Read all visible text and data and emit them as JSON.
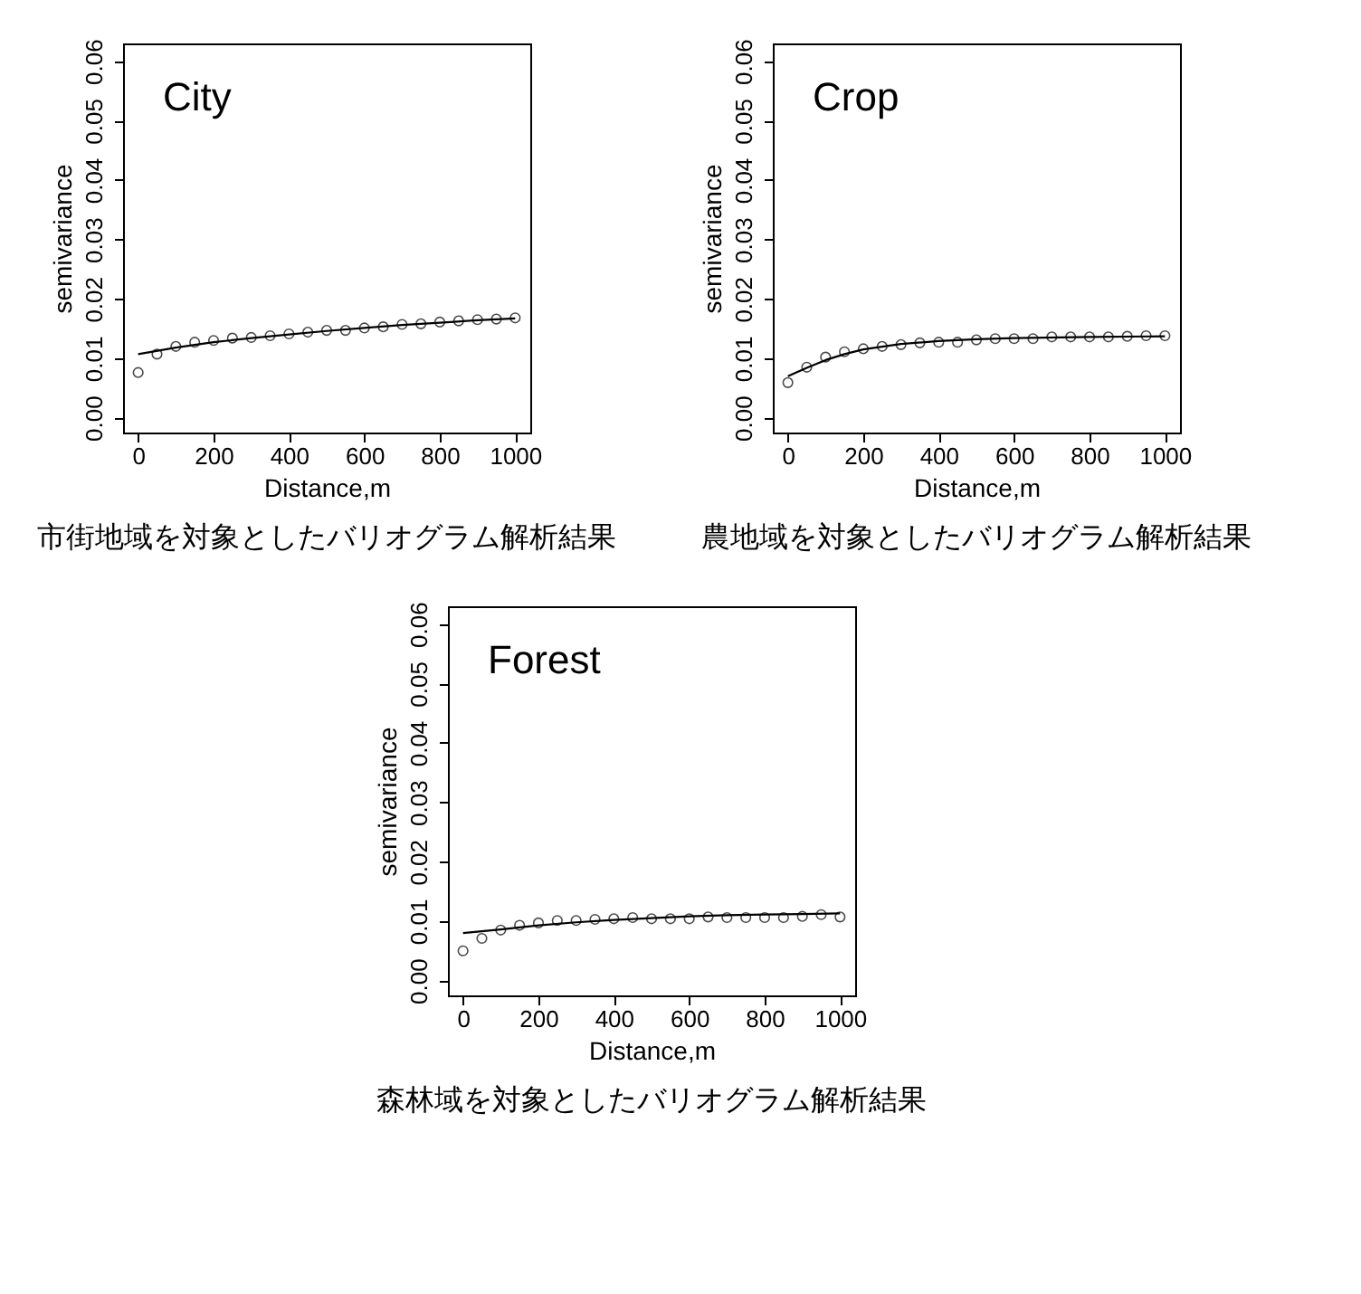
{
  "chart_data": [
    {
      "type": "scatter",
      "title": "City",
      "xlabel": "Distance,m",
      "ylabel": "semivariance",
      "annotations": [
        "市街地域を対象としたバリオグラム解析結果"
      ],
      "xlim": [
        -40,
        1040
      ],
      "ylim": [
        -0.0025,
        0.063
      ],
      "xticks": [
        0,
        200,
        400,
        600,
        800,
        1000
      ],
      "yticks": [
        {
          "value": 0,
          "label": "0.00"
        },
        {
          "value": 0.01,
          "label": "0.01"
        },
        {
          "value": 0.02,
          "label": "0.02"
        },
        {
          "value": 0.03,
          "label": "0.03"
        },
        {
          "value": 0.04,
          "label": "0.04"
        },
        {
          "value": 0.05,
          "label": "0.05"
        },
        {
          "value": 0.06,
          "label": "0.06"
        }
      ],
      "series": [
        {
          "marker": "circle",
          "color": "#000000",
          "x": [
            0,
            50,
            100,
            150,
            200,
            250,
            300,
            350,
            400,
            450,
            500,
            550,
            600,
            650,
            700,
            750,
            800,
            850,
            900,
            950,
            1000
          ],
          "values": [
            0.0076,
            0.0107,
            0.012,
            0.0127,
            0.013,
            0.0134,
            0.0135,
            0.0138,
            0.0141,
            0.0144,
            0.0147,
            0.0147,
            0.0151,
            0.0153,
            0.0157,
            0.0158,
            0.0161,
            0.0163,
            0.0165,
            0.0166,
            0.0168
          ]
        },
        {
          "type": "line",
          "color": "#000000",
          "x": [
            0,
            100,
            200,
            300,
            400,
            500,
            600,
            700,
            800,
            900,
            1000
          ],
          "values": [
            0.0107,
            0.0118,
            0.0127,
            0.0134,
            0.014,
            0.0146,
            0.0151,
            0.0156,
            0.016,
            0.0164,
            0.0167
          ]
        }
      ]
    },
    {
      "type": "scatter",
      "title": "Crop",
      "xlabel": "Distance,m",
      "ylabel": "semivariance",
      "annotations": [
        "農地域を対象としたバリオグラム解析結果"
      ],
      "xlim": [
        -40,
        1040
      ],
      "ylim": [
        -0.0025,
        0.063
      ],
      "xticks": [
        0,
        200,
        400,
        600,
        800,
        1000
      ],
      "yticks": [
        {
          "value": 0,
          "label": "0.00"
        },
        {
          "value": 0.01,
          "label": "0.01"
        },
        {
          "value": 0.02,
          "label": "0.02"
        },
        {
          "value": 0.03,
          "label": "0.03"
        },
        {
          "value": 0.04,
          "label": "0.04"
        },
        {
          "value": 0.05,
          "label": "0.05"
        },
        {
          "value": 0.06,
          "label": "0.06"
        }
      ],
      "series": [
        {
          "marker": "circle",
          "color": "#000000",
          "x": [
            0,
            50,
            100,
            150,
            200,
            250,
            300,
            350,
            400,
            450,
            500,
            550,
            600,
            650,
            700,
            750,
            800,
            850,
            900,
            950,
            1000
          ],
          "values": [
            0.0059,
            0.0085,
            0.0102,
            0.0111,
            0.0116,
            0.012,
            0.0123,
            0.0126,
            0.0127,
            0.0127,
            0.0131,
            0.0133,
            0.0133,
            0.0133,
            0.0136,
            0.0136,
            0.0136,
            0.0136,
            0.0137,
            0.0138,
            0.0138
          ]
        },
        {
          "type": "line",
          "color": "#000000",
          "x": [
            0,
            50,
            100,
            150,
            200,
            300,
            400,
            500,
            600,
            800,
            1000
          ],
          "values": [
            0.007,
            0.0084,
            0.0097,
            0.0107,
            0.0115,
            0.0124,
            0.0129,
            0.0132,
            0.0134,
            0.0136,
            0.0137
          ]
        }
      ]
    },
    {
      "type": "scatter",
      "title": "Forest",
      "xlabel": "Distance,m",
      "ylabel": "semivariance",
      "annotations": [
        "森林域を対象としたバリオグラム解析結果"
      ],
      "xlim": [
        -40,
        1040
      ],
      "ylim": [
        -0.0025,
        0.063
      ],
      "xticks": [
        0,
        200,
        400,
        600,
        800,
        1000
      ],
      "yticks": [
        {
          "value": 0,
          "label": "0.00"
        },
        {
          "value": 0.01,
          "label": "0.01"
        },
        {
          "value": 0.02,
          "label": "0.02"
        },
        {
          "value": 0.03,
          "label": "0.03"
        },
        {
          "value": 0.04,
          "label": "0.04"
        },
        {
          "value": 0.05,
          "label": "0.05"
        },
        {
          "value": 0.06,
          "label": "0.06"
        }
      ],
      "series": [
        {
          "marker": "circle",
          "color": "#000000",
          "x": [
            0,
            50,
            100,
            150,
            200,
            250,
            300,
            350,
            400,
            450,
            500,
            550,
            600,
            650,
            700,
            750,
            800,
            850,
            900,
            950,
            1000
          ],
          "values": [
            0.005,
            0.0071,
            0.0085,
            0.0093,
            0.0097,
            0.0101,
            0.0101,
            0.0103,
            0.0104,
            0.0106,
            0.0104,
            0.0104,
            0.0104,
            0.0107,
            0.0106,
            0.0106,
            0.0106,
            0.0106,
            0.0108,
            0.0111,
            0.0107
          ]
        },
        {
          "type": "line",
          "color": "#000000",
          "x": [
            0,
            100,
            200,
            300,
            400,
            500,
            600,
            700,
            800,
            900,
            1000
          ],
          "values": [
            0.008,
            0.0086,
            0.0093,
            0.0098,
            0.0102,
            0.0105,
            0.0108,
            0.011,
            0.0111,
            0.0112,
            0.0113
          ]
        }
      ]
    }
  ]
}
